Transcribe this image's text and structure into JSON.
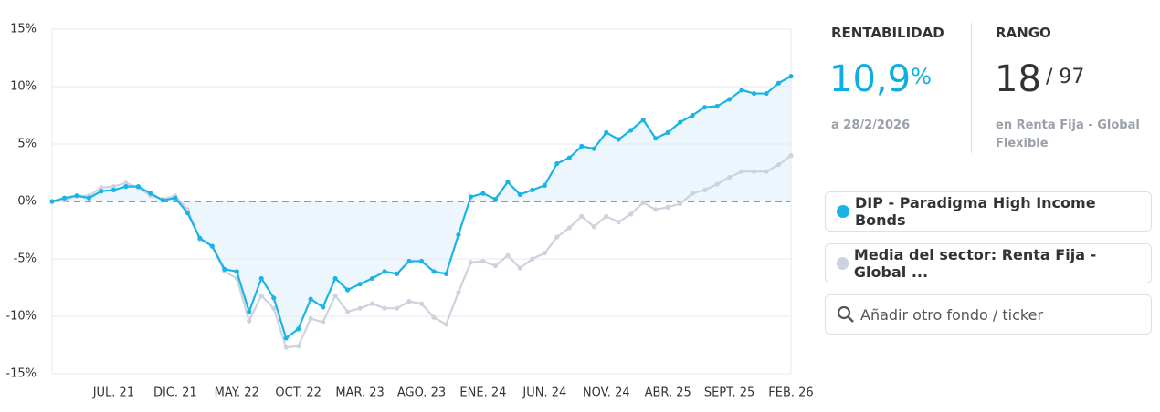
{
  "chart_data": {
    "type": "line",
    "categories": [
      null,
      null,
      null,
      null,
      null,
      "JUL. 21",
      null,
      null,
      null,
      null,
      "DIC. 21",
      null,
      null,
      null,
      null,
      "MAY. 22",
      null,
      null,
      null,
      null,
      "OCT. 22",
      null,
      null,
      null,
      null,
      "MAR. 23",
      null,
      null,
      null,
      null,
      "AGO. 23",
      null,
      null,
      null,
      null,
      "ENE. 24",
      null,
      null,
      null,
      null,
      "JUN. 24",
      null,
      null,
      null,
      null,
      "NOV. 24",
      null,
      null,
      null,
      null,
      "ABR. 25",
      null,
      null,
      null,
      null,
      "SEPT. 25",
      null,
      null,
      null,
      null,
      "FEB. 26"
    ],
    "series": [
      {
        "name": "DIP - Paradigma High Income Bonds",
        "color": "#1ab3e6",
        "fill": "#edf6fc",
        "values": [
          0,
          0.3,
          0.5,
          0.3,
          0.9,
          1.0,
          1.3,
          1.3,
          0.7,
          0.1,
          0.3,
          -1.0,
          -3.2,
          -3.9,
          -5.9,
          -6.1,
          -9.6,
          -6.7,
          -8.4,
          -11.9,
          -11.1,
          -8.5,
          -9.2,
          -6.7,
          -7.7,
          -7.2,
          -6.7,
          -6.1,
          -6.3,
          -5.2,
          -5.2,
          -6.1,
          -6.3,
          -2.9,
          0.4,
          0.7,
          0.2,
          1.7,
          0.6,
          1.0,
          1.4,
          3.3,
          3.8,
          4.8,
          4.6,
          6.0,
          5.4,
          6.2,
          7.1,
          5.5,
          6.0,
          6.9,
          7.5,
          8.2,
          8.3,
          8.9,
          9.7,
          9.4,
          9.4,
          10.3,
          10.9
        ]
      },
      {
        "name": "Media del sector: Renta Fija - Global ...",
        "color": "#cdd3de",
        "values": [
          0,
          0.1,
          0.5,
          0.5,
          1.2,
          1.3,
          1.6,
          1.2,
          0.5,
          0.2,
          0.5,
          -0.7,
          -3.3,
          -3.9,
          -6.1,
          -6.7,
          -10.4,
          -8.2,
          -9.3,
          -12.7,
          -12.6,
          -10.2,
          -10.5,
          -8.2,
          -9.6,
          -9.3,
          -8.9,
          -9.3,
          -9.3,
          -8.7,
          -8.9,
          -10.1,
          -10.7,
          -7.9,
          -5.3,
          -5.2,
          -5.6,
          -4.7,
          -5.8,
          -5.0,
          -4.5,
          -3.1,
          -2.3,
          -1.3,
          -2.2,
          -1.3,
          -1.8,
          -1.1,
          -0.1,
          -0.7,
          -0.5,
          -0.2,
          0.7,
          1.0,
          1.5,
          2.1,
          2.6,
          2.6,
          2.6,
          3.2,
          4.0
        ]
      }
    ],
    "ylim": [
      -15,
      15
    ],
    "yticks": [
      {
        "value": -15,
        "label": "-15%"
      },
      {
        "value": -10,
        "label": "-10%"
      },
      {
        "value": -5,
        "label": "-5%"
      },
      {
        "value": 0,
        "label": "0%"
      },
      {
        "value": 5,
        "label": "5%"
      },
      {
        "value": 10,
        "label": "10%"
      },
      {
        "value": 15,
        "label": "15%"
      }
    ],
    "grid": true,
    "zero_line": "dashed"
  },
  "panel": {
    "rentabilidad": {
      "label": "RENTABILIDAD",
      "value": "10,9",
      "unit": "%",
      "date": "a 28/2/2026"
    },
    "rango": {
      "label": "RANGO",
      "rank": "18",
      "total": "/ 97",
      "note": "en Renta Fija - Global Flexible"
    },
    "search": "Añadir otro fondo / ticker"
  }
}
